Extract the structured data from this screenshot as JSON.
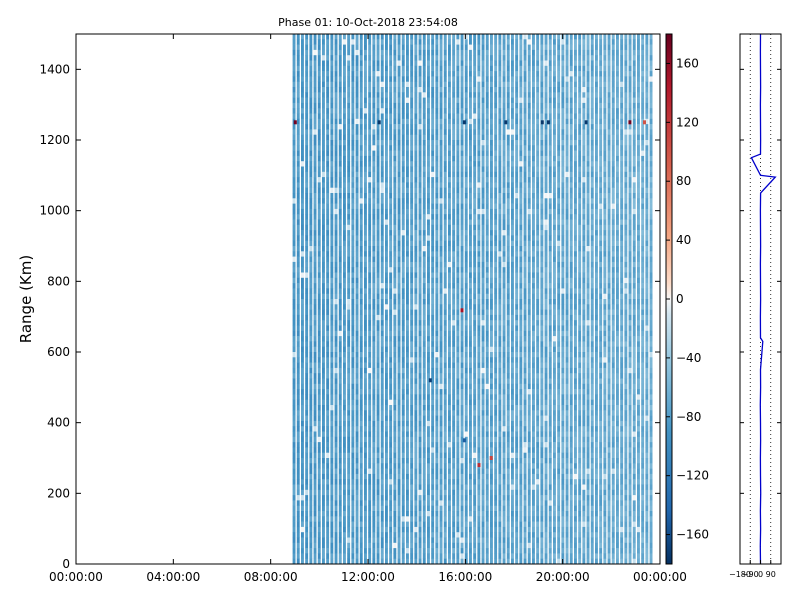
{
  "chart_data": [
    {
      "type": "heatmap",
      "title": "Phase 01: 10-Oct-2018 23:54:08",
      "ylabel": "Range (Km)",
      "xlabel": "",
      "x_ticks": [
        "00:00:00",
        "04:00:00",
        "08:00:00",
        "12:00:00",
        "16:00:00",
        "20:00:00",
        "00:00:00"
      ],
      "y_ticks": [
        0,
        200,
        400,
        600,
        800,
        1000,
        1200,
        1400
      ],
      "xlim_hours": [
        0,
        24
      ],
      "ylim": [
        0,
        1500
      ],
      "data_start_hour": 8.9,
      "data_end_hour": 23.9,
      "grid": false,
      "colorbar": {
        "ticks": [
          160,
          120,
          80,
          40,
          0,
          -40,
          -80,
          -120,
          -160
        ],
        "range": [
          -180,
          180
        ],
        "colormap": "RdBu_r"
      },
      "dominant_values": [
        -90,
        -60
      ],
      "outliers": [
        {
          "hour": 8.95,
          "range": 1250,
          "value": 175
        },
        {
          "hour": 12.4,
          "range": 1250,
          "value": -175
        },
        {
          "hour": 15.9,
          "range": 1250,
          "value": -175
        },
        {
          "hour": 17.6,
          "range": 1250,
          "value": -175
        },
        {
          "hour": 19.1,
          "range": 1250,
          "value": -175
        },
        {
          "hour": 19.35,
          "range": 1250,
          "value": -175
        },
        {
          "hour": 20.9,
          "range": 1250,
          "value": -175
        },
        {
          "hour": 22.7,
          "range": 1250,
          "value": 175
        },
        {
          "hour": 23.3,
          "range": 1250,
          "value": 100
        },
        {
          "hour": 15.8,
          "range": 718,
          "value": 150
        },
        {
          "hour": 14.5,
          "range": 520,
          "value": -170
        },
        {
          "hour": 16.5,
          "range": 280,
          "value": 130
        },
        {
          "hour": 17.0,
          "range": 300,
          "value": 110
        },
        {
          "hour": 15.9,
          "range": 350,
          "value": -150
        }
      ]
    },
    {
      "type": "line",
      "title": "",
      "xlabel": "",
      "ylabel": "",
      "x_ticks": [
        -180,
        -90,
        0,
        90
      ],
      "xlim": [
        -180,
        180
      ],
      "ylim": [
        0,
        1500
      ],
      "series": [
        {
          "color": "#0000cc",
          "points": [
            [
              0,
              0
            ],
            [
              -2,
              50
            ],
            [
              1,
              100
            ],
            [
              -1,
              150
            ],
            [
              2,
              200
            ],
            [
              0,
              250
            ],
            [
              -1,
              300
            ],
            [
              1,
              350
            ],
            [
              0,
              400
            ],
            [
              -2,
              450
            ],
            [
              1,
              500
            ],
            [
              0,
              550
            ],
            [
              20,
              630
            ],
            [
              0,
              640
            ],
            [
              -1,
              700
            ],
            [
              1,
              750
            ],
            [
              0,
              800
            ],
            [
              -1,
              850
            ],
            [
              1,
              900
            ],
            [
              0,
              950
            ],
            [
              -1,
              1000
            ],
            [
              1,
              1050
            ],
            [
              130,
              1095
            ],
            [
              0,
              1100
            ],
            [
              -80,
              1150
            ],
            [
              0,
              1160
            ],
            [
              1,
              1200
            ],
            [
              0,
              1250
            ],
            [
              -1,
              1300
            ],
            [
              1,
              1350
            ],
            [
              0,
              1400
            ],
            [
              -1,
              1450
            ],
            [
              0,
              1500
            ]
          ]
        }
      ]
    }
  ]
}
